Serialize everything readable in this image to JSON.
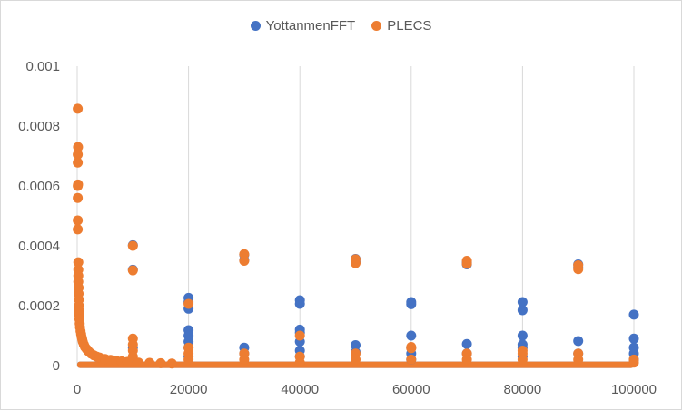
{
  "chart_data": {
    "type": "scatter",
    "title": "",
    "xlabel": "",
    "ylabel": "",
    "xlim": [
      0,
      100000
    ],
    "ylim": [
      0,
      0.001
    ],
    "x_ticks": [
      "0",
      "20000",
      "40000",
      "60000",
      "80000",
      "100000"
    ],
    "y_ticks": [
      "0",
      "0.0002",
      "0.0004",
      "0.0006",
      "0.0008",
      "0.001"
    ],
    "grid": "vertical",
    "legend_position": "top",
    "series": [
      {
        "name": "YottanmenFFT",
        "color": "#4472c4",
        "points": [
          [
            10000,
            0.000402
          ],
          [
            10000,
            0.00032
          ],
          [
            10000,
            6e-05
          ],
          [
            20000,
            0.000226
          ],
          [
            20000,
            0.000212
          ],
          [
            20000,
            0.00019
          ],
          [
            20000,
            0.000118
          ],
          [
            20000,
            0.0001
          ],
          [
            20000,
            8e-05
          ],
          [
            20000,
            6e-05
          ],
          [
            20000,
            3e-05
          ],
          [
            30000,
            0.00037
          ],
          [
            30000,
            0.000352
          ],
          [
            30000,
            6e-05
          ],
          [
            30000,
            4e-05
          ],
          [
            40000,
            0.000218
          ],
          [
            40000,
            0.000206
          ],
          [
            40000,
            0.00012
          ],
          [
            40000,
            0.00011
          ],
          [
            40000,
            8e-05
          ],
          [
            40000,
            5e-05
          ],
          [
            40000,
            3e-05
          ],
          [
            50000,
            0.000356
          ],
          [
            50000,
            0.000345
          ],
          [
            50000,
            6.8e-05
          ],
          [
            50000,
            4.5e-05
          ],
          [
            60000,
            0.000212
          ],
          [
            60000,
            0.000205
          ],
          [
            60000,
            0.0001
          ],
          [
            60000,
            6e-05
          ],
          [
            60000,
            4e-05
          ],
          [
            60000,
            2e-05
          ],
          [
            70000,
            0.000345
          ],
          [
            70000,
            0.000338
          ],
          [
            70000,
            7.2e-05
          ],
          [
            70000,
            4e-05
          ],
          [
            80000,
            0.000212
          ],
          [
            80000,
            0.000185
          ],
          [
            80000,
            0.0001
          ],
          [
            80000,
            7e-05
          ],
          [
            80000,
            6e-05
          ],
          [
            80000,
            3e-05
          ],
          [
            90000,
            0.000338
          ],
          [
            90000,
            0.000328
          ],
          [
            90000,
            8.2e-05
          ],
          [
            90000,
            4e-05
          ],
          [
            100000,
            0.00017
          ],
          [
            100000,
            9e-05
          ],
          [
            100000,
            6e-05
          ],
          [
            100000,
            4e-05
          ],
          [
            100000,
            2e-05
          ]
        ]
      },
      {
        "name": "PLECS",
        "color": "#ed7d31",
        "points": [
          [
            100,
            0.000858
          ],
          [
            150,
            0.00073
          ],
          [
            100,
            0.000705
          ],
          [
            100,
            0.000678
          ],
          [
            150,
            0.000605
          ],
          [
            100,
            0.0006
          ],
          [
            100,
            0.00056
          ],
          [
            100,
            0.000485
          ],
          [
            100,
            0.000455
          ],
          [
            200,
            0.000345
          ],
          [
            200,
            0.00032
          ],
          [
            200,
            0.0003
          ],
          [
            200,
            0.00028
          ],
          [
            250,
            0.00026
          ],
          [
            250,
            0.00024
          ],
          [
            300,
            0.00022
          ],
          [
            300,
            0.0002
          ],
          [
            300,
            0.000185
          ],
          [
            350,
            0.00017
          ],
          [
            400,
            0.000155
          ],
          [
            450,
            0.00014
          ],
          [
            500,
            0.000128
          ],
          [
            600,
            0.000115
          ],
          [
            700,
            0.000105
          ],
          [
            800,
            9.5e-05
          ],
          [
            900,
            8.8e-05
          ],
          [
            1000,
            8e-05
          ],
          [
            1200,
            7e-05
          ],
          [
            1400,
            6.2e-05
          ],
          [
            1700,
            5.5e-05
          ],
          [
            2000,
            4.8e-05
          ],
          [
            2500,
            4e-05
          ],
          [
            3000,
            3.4e-05
          ],
          [
            3500,
            3e-05
          ],
          [
            4000,
            2.7e-05
          ],
          [
            5000,
            2.2e-05
          ],
          [
            6000,
            1.9e-05
          ],
          [
            7000,
            1.6e-05
          ],
          [
            8000,
            1.4e-05
          ],
          [
            9000,
            1.2e-05
          ],
          [
            10000,
            0.0004
          ],
          [
            10000,
            0.000318
          ],
          [
            10000,
            9e-05
          ],
          [
            10000,
            7e-05
          ],
          [
            10000,
            5e-05
          ],
          [
            10000,
            3e-05
          ],
          [
            11000,
            1e-05
          ],
          [
            13000,
            9e-06
          ],
          [
            15000,
            8e-06
          ],
          [
            17000,
            7e-06
          ],
          [
            20000,
            0.000206
          ],
          [
            20000,
            6e-05
          ],
          [
            20000,
            4e-05
          ],
          [
            20000,
            2e-05
          ],
          [
            30000,
            0.000372
          ],
          [
            30000,
            0.00035
          ],
          [
            30000,
            4e-05
          ],
          [
            30000,
            2e-05
          ],
          [
            40000,
            0.0001
          ],
          [
            40000,
            3e-05
          ],
          [
            40000,
            1e-05
          ],
          [
            50000,
            0.000355
          ],
          [
            50000,
            0.000342
          ],
          [
            50000,
            4e-05
          ],
          [
            50000,
            2e-05
          ],
          [
            60000,
            6.2e-05
          ],
          [
            60000,
            5.8e-05
          ],
          [
            60000,
            2e-05
          ],
          [
            70000,
            0.00035
          ],
          [
            70000,
            0.00034
          ],
          [
            70000,
            4e-05
          ],
          [
            70000,
            2e-05
          ],
          [
            80000,
            5e-05
          ],
          [
            80000,
            4e-05
          ],
          [
            80000,
            2e-05
          ],
          [
            90000,
            0.000335
          ],
          [
            90000,
            0.000322
          ],
          [
            90000,
            4e-05
          ],
          [
            90000,
            2e-05
          ],
          [
            100000,
            2e-05
          ],
          [
            100000,
            1e-05
          ]
        ]
      }
    ]
  }
}
